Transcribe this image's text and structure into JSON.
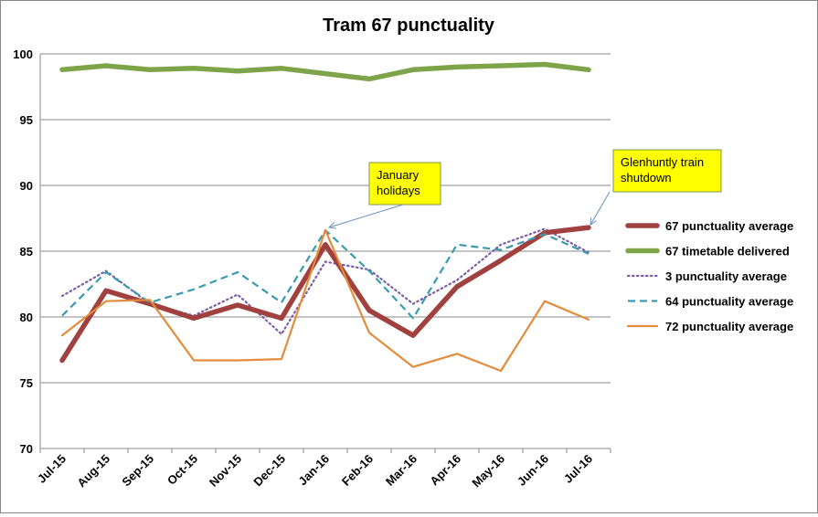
{
  "chart_data": {
    "type": "line",
    "title": "Tram 67 punctuality",
    "xlabel": "",
    "ylabel": "",
    "categories": [
      "Jul-15",
      "Aug-15",
      "Sep-15",
      "Oct-15",
      "Nov-15",
      "Dec-15",
      "Jan-16",
      "Feb-16",
      "Mar-16",
      "Apr-16",
      "May-16",
      "Jun-16",
      "Jul-16"
    ],
    "ylim": [
      70,
      100
    ],
    "yticks": [
      70,
      75,
      80,
      85,
      90,
      95,
      100
    ],
    "grid": "horizontal",
    "legend_position": "right",
    "series": [
      {
        "name": "67 punctuality average",
        "color": "#a0413f",
        "style": "solid-thick",
        "values": [
          76.7,
          82.0,
          81.0,
          79.9,
          80.9,
          79.9,
          85.5,
          80.5,
          78.6,
          82.3,
          84.3,
          86.4,
          86.8
        ]
      },
      {
        "name": "67 timetable delivered",
        "color": "#7ea44a",
        "style": "solid-thick",
        "values": [
          98.8,
          99.1,
          98.8,
          98.9,
          98.7,
          98.9,
          98.5,
          98.1,
          98.8,
          99.0,
          99.1,
          99.2,
          98.8
        ]
      },
      {
        "name": "3 punctuality average",
        "color": "#7b5ea7",
        "style": "dotted",
        "values": [
          81.6,
          83.5,
          81.0,
          80.1,
          81.7,
          78.7,
          84.2,
          83.6,
          81.0,
          82.8,
          85.5,
          86.7,
          84.9
        ]
      },
      {
        "name": "64 punctuality average",
        "color": "#3a9ab0",
        "style": "dashed",
        "values": [
          80.1,
          83.4,
          81.1,
          82.1,
          83.4,
          81.1,
          86.6,
          83.5,
          79.9,
          85.5,
          85.1,
          86.3,
          84.8
        ]
      },
      {
        "name": "72 punctuality average",
        "color": "#e28c3c",
        "style": "solid",
        "values": [
          78.6,
          81.2,
          81.3,
          76.7,
          76.7,
          76.8,
          86.6,
          78.8,
          76.2,
          77.2,
          75.9,
          81.2,
          79.8
        ]
      }
    ],
    "annotations": [
      {
        "text": "January holidays",
        "lines": [
          "January",
          "holidays"
        ],
        "target_category": "Jan-16",
        "target_value": 86.6
      },
      {
        "text": "Glenhuntly train shutdown",
        "lines": [
          "Glenhuntly train",
          "shutdown"
        ],
        "target_category": "Jul-16",
        "target_value": 86.8
      }
    ]
  }
}
